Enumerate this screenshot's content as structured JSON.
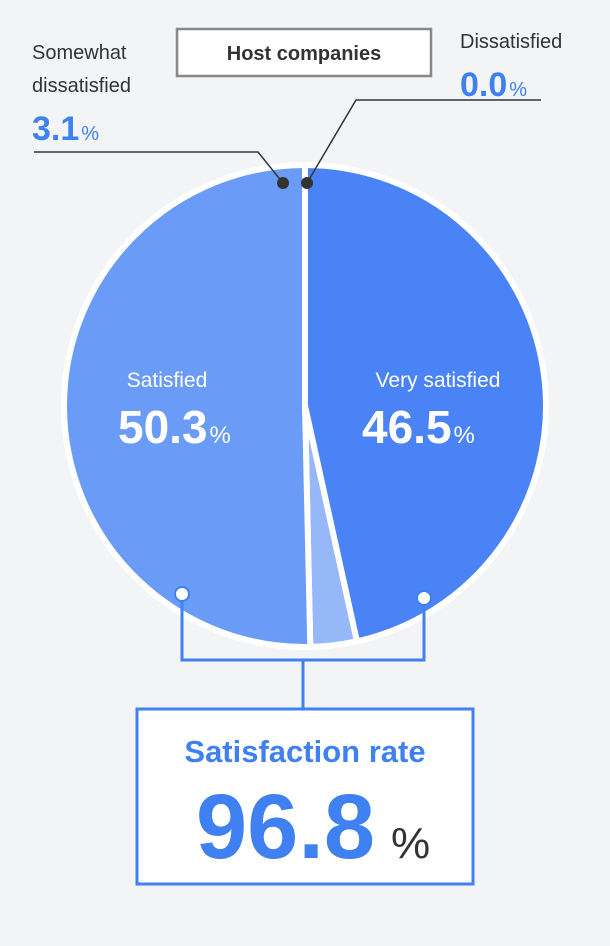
{
  "header": {
    "title": "Host companies"
  },
  "colors": {
    "very_satisfied": "#4a83f5",
    "satisfied": "#6a9bf6",
    "somewhat_dissatisfied": "#96b8f8",
    "dissatisfied": "#b9cffa",
    "accent": "#3f80f2",
    "frame": "#888888",
    "text": "#333333",
    "background": "#f3f4f6"
  },
  "chart_data": {
    "type": "pie",
    "title": "Host companies",
    "unit": "%",
    "slices": [
      {
        "label": "Very satisfied",
        "value": 46.5,
        "value_text": "46.5"
      },
      {
        "label": "Dissatisfied",
        "value": 0.0,
        "value_text": "0.0"
      },
      {
        "label": "Somewhat dissatisfied",
        "value": 3.1,
        "value_text": "3.1"
      },
      {
        "label": "Satisfied",
        "value": 50.3,
        "value_text": "50.3"
      }
    ],
    "summary": {
      "label": "Satisfaction rate",
      "value": 96.8,
      "value_text": "96.8",
      "unit": "%"
    }
  },
  "labels": {
    "very_satisfied": "Very satisfied",
    "satisfied": "Satisfied",
    "dissatisfied": "Dissatisfied",
    "somewhat_line1": "Somewhat",
    "somewhat_line2": "dissatisfied"
  }
}
